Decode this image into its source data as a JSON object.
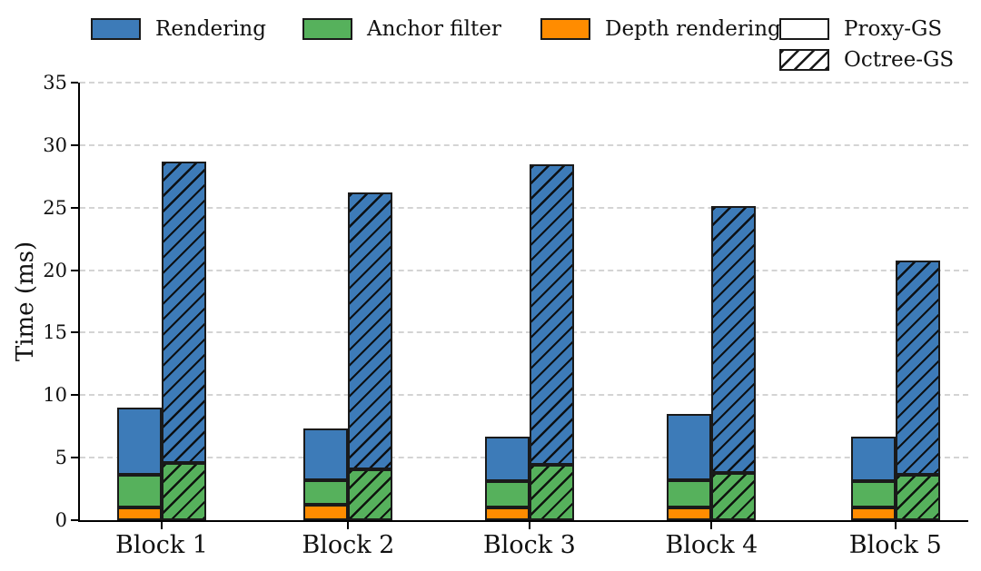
{
  "figure": {
    "colors": {
      "edge": "#1a1a1a",
      "grid": "#d4d4d4",
      "series_colors": {
        "Rendering": "#3d7bb8",
        "Anchor filter": "#56b15c",
        "Depth rendering": "#ff8c00"
      }
    }
  },
  "legend": {
    "items": [
      {
        "label": "Rendering",
        "type": "color",
        "series": "Rendering"
      },
      {
        "label": "Anchor filter",
        "type": "color",
        "series": "Anchor filter"
      },
      {
        "label": "Depth rendering",
        "type": "color",
        "series": "Depth rendering"
      },
      {
        "label": "Proxy-GS",
        "type": "plain"
      },
      {
        "label": "Octree-GS",
        "type": "hatched"
      }
    ]
  },
  "chart_data": {
    "type": "bar",
    "stacked": true,
    "title": "",
    "xlabel": "",
    "ylabel": "Time (ms)",
    "ylim": [
      0,
      35
    ],
    "yticks": [
      0,
      5,
      10,
      15,
      20,
      25,
      30,
      35
    ],
    "grid": "horizontal dashed",
    "legend_position": "top",
    "categories": [
      "Block 1",
      "Block 2",
      "Block 3",
      "Block 4",
      "Block 5"
    ],
    "groups": [
      {
        "name": "Proxy-GS",
        "hatch": false,
        "segments": [
          {
            "series": "Depth rendering",
            "values": [
              1.0,
              1.2,
              1.0,
              1.0,
              1.0
            ]
          },
          {
            "series": "Anchor filter",
            "values": [
              2.6,
              2.0,
              2.1,
              2.2,
              2.1
            ]
          },
          {
            "series": "Rendering",
            "values": [
              5.4,
              4.1,
              3.6,
              5.3,
              3.6
            ]
          }
        ],
        "totals": [
          9.0,
          7.3,
          6.7,
          8.5,
          6.7
        ]
      },
      {
        "name": "Octree-GS",
        "hatch": true,
        "segments": [
          {
            "series": "Anchor filter",
            "values": [
              4.6,
              4.1,
              4.4,
              3.8,
              3.6
            ]
          },
          {
            "series": "Rendering",
            "values": [
              24.1,
              22.1,
              24.1,
              21.3,
              17.2
            ]
          }
        ],
        "totals": [
          28.7,
          26.2,
          28.5,
          25.1,
          20.8
        ]
      }
    ]
  }
}
